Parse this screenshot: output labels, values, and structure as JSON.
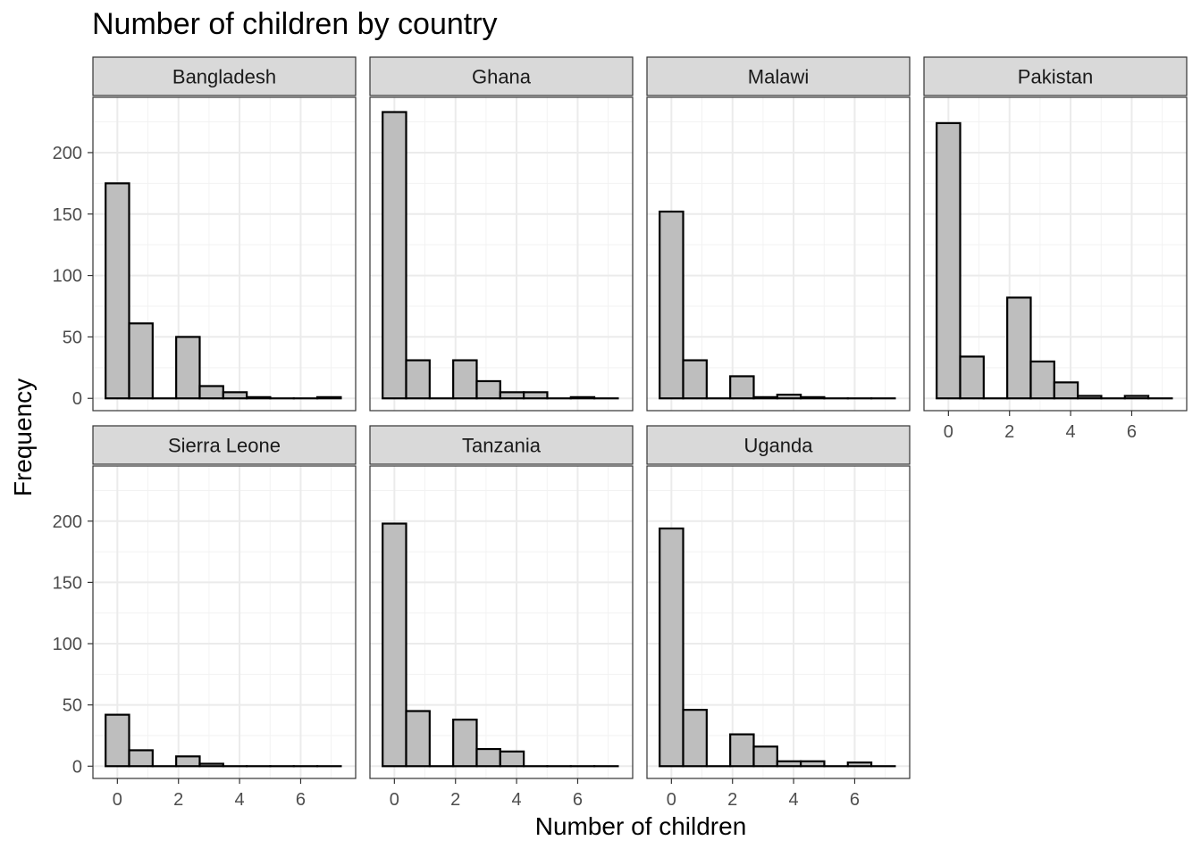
{
  "chart_data": {
    "type": "bar",
    "title": "Number of children by country",
    "xlabel": "Number of children",
    "ylabel": "Frequency",
    "xlim": [
      -0.8,
      7.8
    ],
    "ylim": [
      -10,
      245
    ],
    "x_ticks": [
      0,
      2,
      4,
      6
    ],
    "y_ticks": [
      0,
      50,
      100,
      150,
      200
    ],
    "bin_width": 0.77,
    "bin_centers": [
      0,
      0.77,
      1.54,
      2.31,
      3.08,
      3.85,
      4.62,
      5.39,
      6.16,
      6.93
    ],
    "panels": [
      {
        "name": "Bangladesh",
        "values": [
          175,
          61,
          0,
          50,
          10,
          5,
          1,
          0,
          0,
          1
        ]
      },
      {
        "name": "Ghana",
        "values": [
          233,
          31,
          0,
          31,
          14,
          5,
          5,
          0,
          1,
          0
        ]
      },
      {
        "name": "Malawi",
        "values": [
          152,
          31,
          0,
          18,
          1,
          3,
          1,
          0,
          0,
          0
        ]
      },
      {
        "name": "Pakistan",
        "values": [
          224,
          34,
          0,
          82,
          30,
          13,
          2,
          0,
          2,
          0
        ]
      },
      {
        "name": "Sierra Leone",
        "values": [
          42,
          13,
          0,
          8,
          2,
          0,
          0,
          0,
          0,
          0
        ]
      },
      {
        "name": "Tanzania",
        "values": [
          198,
          45,
          0,
          38,
          14,
          12,
          0,
          0,
          0,
          0
        ]
      },
      {
        "name": "Uganda",
        "values": [
          194,
          46,
          0,
          26,
          16,
          4,
          4,
          0,
          3,
          0
        ]
      }
    ],
    "bar_fill": "#bebebe",
    "bar_stroke": "#000000",
    "grid": true,
    "legend": "none"
  }
}
